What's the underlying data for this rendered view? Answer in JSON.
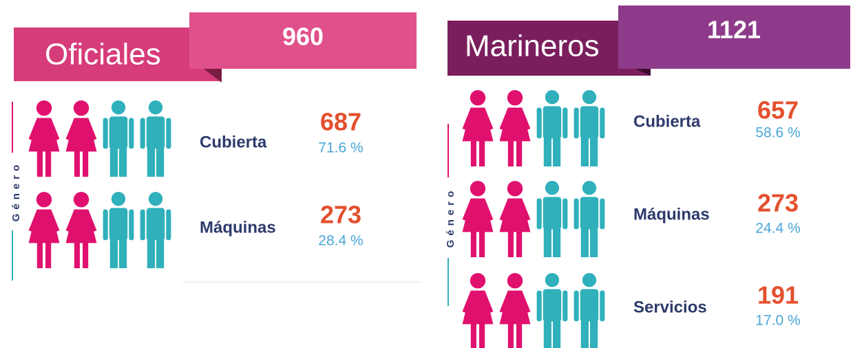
{
  "panels": [
    {
      "title": "Oficiales",
      "total": "960",
      "axis_label": "Género",
      "rows": [
        {
          "label": "Cubierta",
          "count": "687",
          "percent": "71.6 %"
        },
        {
          "label": "Máquinas",
          "count": "273",
          "percent": "28.4 %"
        }
      ]
    },
    {
      "title": "Marineros",
      "total": "1121",
      "axis_label": "Género",
      "rows": [
        {
          "label": "Cubierta",
          "count": "657",
          "percent": "58.6 %"
        },
        {
          "label": "Máquinas",
          "count": "273",
          "percent": "24.4 %"
        },
        {
          "label": "Servicios",
          "count": "191",
          "percent": "17.0 %"
        }
      ]
    }
  ]
}
